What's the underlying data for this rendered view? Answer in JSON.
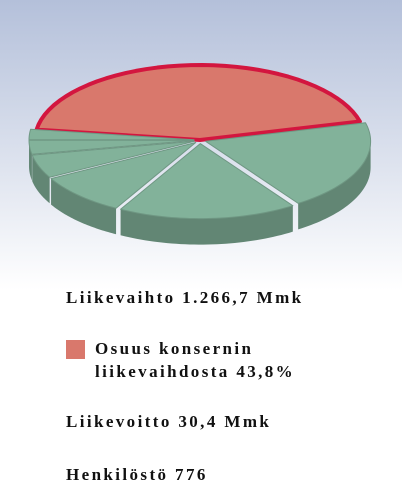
{
  "chart_data": {
    "type": "pie",
    "categories": [
      "Osuus konsernin liikevaihdosta 43,8%",
      null,
      null,
      null,
      null,
      null,
      null
    ],
    "values": [
      43.8,
      19.5,
      17.5,
      9,
      5,
      3,
      2.2
    ],
    "colors": [
      "#d9786c",
      "#82b29a",
      "#82b29a",
      "#82b29a",
      "#82b29a",
      "#82b29a",
      "#82b29a"
    ]
  },
  "facts": [
    "Liikevaihto 1.266,7 Mmk",
    "Liikevoitto 30,4 Mmk",
    "Henkilöstö 776"
  ]
}
